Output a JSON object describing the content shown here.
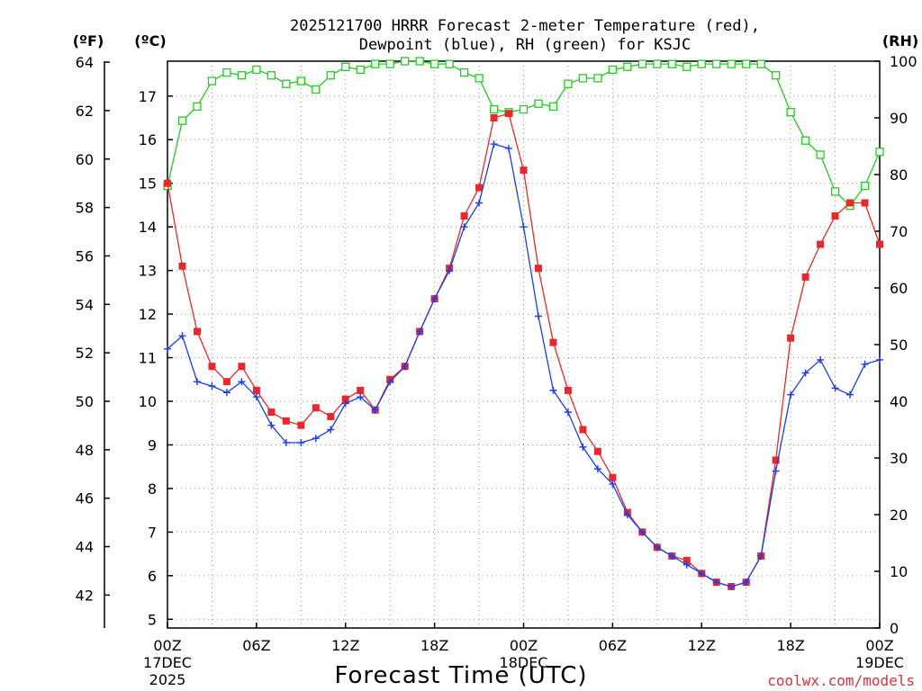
{
  "chart_data": {
    "type": "line",
    "title_line1": "2025121700 HRRR Forecast 2-meter Temperature (red),",
    "title_line2": "Dewpoint (blue), RH (green) for KSJC",
    "xlabel": "Forecast Time (UTC)",
    "credit": "coolwx.com/models",
    "units": {
      "fahrenheit": "(ºF)",
      "celsius": "(ºC)",
      "rh": "(RH)"
    },
    "x_range_hours": [
      0,
      48
    ],
    "celsius_range": [
      4.8,
      17.8
    ],
    "fahrenheit_ticks": [
      42,
      44,
      46,
      48,
      50,
      52,
      54,
      56,
      58,
      60,
      62,
      64
    ],
    "celsius_ticks": [
      5,
      6,
      7,
      8,
      9,
      10,
      11,
      12,
      13,
      14,
      15,
      16,
      17
    ],
    "rh_range": [
      0,
      100
    ],
    "rh_ticks": [
      0,
      10,
      20,
      30,
      40,
      50,
      60,
      70,
      80,
      90,
      100
    ],
    "x_ticks": [
      {
        "hour": 0,
        "labels": [
          "00Z",
          "17DEC",
          "2025"
        ]
      },
      {
        "hour": 6,
        "labels": [
          "06Z"
        ]
      },
      {
        "hour": 12,
        "labels": [
          "12Z"
        ]
      },
      {
        "hour": 18,
        "labels": [
          "18Z"
        ]
      },
      {
        "hour": 24,
        "labels": [
          "00Z",
          "18DEC"
        ]
      },
      {
        "hour": 30,
        "labels": [
          "06Z"
        ]
      },
      {
        "hour": 36,
        "labels": [
          "12Z"
        ]
      },
      {
        "hour": 42,
        "labels": [
          "18Z"
        ]
      },
      {
        "hour": 48,
        "labels": [
          "00Z",
          "19DEC"
        ]
      }
    ],
    "series": [
      {
        "name": "Temperature",
        "color": "#e8282c",
        "marker": "filled-square",
        "axis": "celsius",
        "values": [
          15.0,
          13.1,
          11.6,
          10.8,
          10.45,
          10.8,
          10.25,
          9.75,
          9.55,
          9.45,
          9.85,
          9.65,
          10.05,
          10.25,
          9.8,
          10.5,
          10.8,
          11.6,
          12.35,
          13.05,
          14.25,
          14.9,
          16.5,
          16.6,
          15.3,
          13.05,
          11.35,
          10.25,
          9.35,
          8.85,
          8.25,
          7.45,
          7.0,
          6.65,
          6.45,
          6.35,
          6.05,
          5.85,
          5.75,
          5.85,
          6.45,
          8.65,
          11.45,
          12.85,
          13.6,
          14.25,
          14.55,
          14.55,
          13.6
        ]
      },
      {
        "name": "Dewpoint",
        "color": "#1c3cee",
        "marker": "plus",
        "axis": "celsius",
        "values": [
          11.2,
          11.5,
          10.45,
          10.35,
          10.2,
          10.45,
          10.1,
          9.45,
          9.05,
          9.05,
          9.15,
          9.35,
          9.95,
          10.1,
          9.8,
          10.45,
          10.8,
          11.6,
          12.35,
          13.0,
          14.0,
          14.55,
          15.9,
          15.8,
          14.0,
          11.95,
          10.25,
          9.75,
          8.95,
          8.45,
          8.1,
          7.4,
          7.0,
          6.65,
          6.45,
          6.25,
          6.05,
          5.85,
          5.75,
          5.85,
          6.45,
          8.4,
          10.15,
          10.65,
          10.95,
          10.3,
          10.15,
          10.85,
          10.95
        ]
      },
      {
        "name": "RH",
        "color": "#22cc22",
        "marker": "open-square",
        "axis": "rh",
        "values": [
          78,
          89.5,
          92,
          96.5,
          98,
          97.5,
          98.5,
          97.5,
          96,
          96.5,
          95,
          97.5,
          99,
          98.5,
          99.5,
          99.5,
          100,
          100,
          99.5,
          99.5,
          98,
          97,
          91.5,
          91,
          91.5,
          92.5,
          92,
          96,
          97,
          97,
          98.5,
          99,
          99.5,
          99.5,
          99.5,
          99,
          99.5,
          99.5,
          99.5,
          99.5,
          99.5,
          97.5,
          91,
          86,
          83.5,
          77,
          74.5,
          78,
          84
        ]
      }
    ]
  }
}
